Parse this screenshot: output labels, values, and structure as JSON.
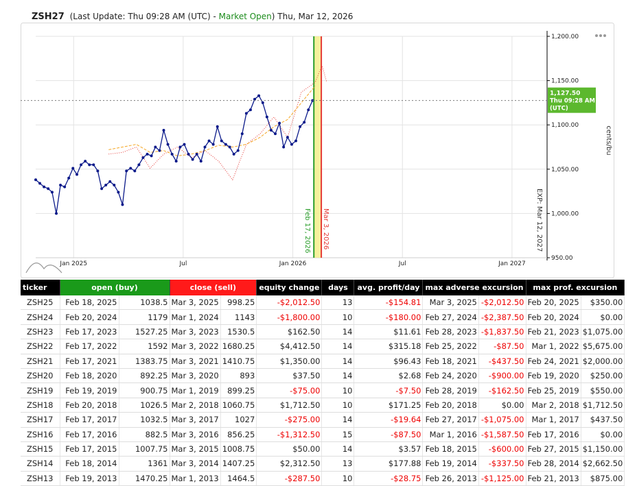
{
  "header": {
    "symbol": "ZSH27",
    "update_text": "(Last Update: Thu 09:28 AM (UTC) -",
    "status": "Market Open",
    "update_suffix": ")",
    "date": "Thu, Mar 12, 2026"
  },
  "chart_data": {
    "type": "line",
    "y_label": "cents/bu",
    "xlim": [
      2024.827,
      2027.16
    ],
    "xticks": [
      {
        "value": 2025.0,
        "label": "Jan 2025"
      },
      {
        "value": 2025.5,
        "label": "Jul"
      },
      {
        "value": 2026.0,
        "label": "Jan 2026"
      },
      {
        "value": 2026.5,
        "label": "Jul"
      },
      {
        "value": 2027.0,
        "label": "Jan 2027"
      }
    ],
    "ylim": [
      950,
      1200
    ],
    "yticks": [
      {
        "value": 950,
        "label": "950.00"
      },
      {
        "value": 1000,
        "label": "1,000.00"
      },
      {
        "value": 1050,
        "label": "1,050.00"
      },
      {
        "value": 1100,
        "label": "1,100.00"
      },
      {
        "value": 1150,
        "label": "1,150.00"
      },
      {
        "value": 1200,
        "label": "1,200.00"
      }
    ],
    "grid": true,
    "series": [
      {
        "color": "#0b1a8a",
        "markers": true,
        "x": [
          2024.827,
          2024.846,
          2024.865,
          2024.884,
          2024.902,
          2024.921,
          2024.94,
          2024.959,
          2024.978,
          2024.997,
          2025.015,
          2025.034,
          2025.053,
          2025.072,
          2025.091,
          2025.11,
          2025.128,
          2025.147,
          2025.166,
          2025.185,
          2025.204,
          2025.223,
          2025.241,
          2025.26,
          2025.279,
          2025.298,
          2025.317,
          2025.336,
          2025.355,
          2025.373,
          2025.392,
          2025.411,
          2025.43,
          2025.449,
          2025.468,
          2025.486,
          2025.505,
          2025.524,
          2025.543,
          2025.562,
          2025.581,
          2025.599,
          2025.618,
          2025.637,
          2025.656,
          2025.675,
          2025.694,
          2025.712,
          2025.731,
          2025.75,
          2025.769,
          2025.788,
          2025.807,
          2025.826,
          2025.845,
          2025.863,
          2025.882,
          2025.901,
          2025.92,
          2025.939,
          2025.958,
          2025.976,
          2025.995,
          2026.014,
          2026.033,
          2026.052,
          2026.071,
          2026.09
        ],
        "values": [
          1038,
          1034,
          1030,
          1028,
          1024,
          1000,
          1032,
          1030,
          1040,
          1051,
          1044,
          1055,
          1059,
          1055,
          1055,
          1048,
          1028,
          1032,
          1036,
          1032,
          1024,
          1010,
          1048,
          1051,
          1048,
          1055,
          1063,
          1067,
          1065,
          1075,
          1071,
          1094,
          1078,
          1067,
          1059,
          1075,
          1078,
          1067,
          1061,
          1067,
          1059,
          1075,
          1082,
          1078,
          1098,
          1082,
          1078,
          1075,
          1067,
          1071,
          1090,
          1113,
          1117,
          1129,
          1133,
          1125,
          1109,
          1094,
          1090,
          1102,
          1075,
          1086,
          1078,
          1082,
          1098,
          1103,
          1117,
          1127.5
        ]
      },
      {
        "color": "#f5a623",
        "dash": "4,2",
        "x": [
          2025.16,
          2025.223,
          2025.286,
          2025.349,
          2025.411,
          2025.474,
          2025.537,
          2025.6,
          2025.662,
          2025.725,
          2025.788,
          2025.851,
          2025.914,
          2025.976,
          2026.039,
          2026.102
        ],
        "values": [
          1072,
          1075,
          1078,
          1069,
          1071,
          1065,
          1067,
          1071,
          1077,
          1075,
          1078,
          1086,
          1098,
          1106,
          1125,
          1144
        ]
      },
      {
        "color": "#e53935",
        "dash": "1,2",
        "x": [
          2025.16,
          2025.223,
          2025.286,
          2025.349,
          2025.411,
          2025.474,
          2025.537,
          2025.6,
          2025.662,
          2025.725,
          2025.788,
          2025.851,
          2025.914,
          2025.976,
          2026.039,
          2026.102,
          2026.133,
          2026.155
        ],
        "values": [
          1067,
          1069,
          1075,
          1051,
          1067,
          1075,
          1063,
          1071,
          1059,
          1038,
          1078,
          1090,
          1109,
          1086,
          1137,
          1148,
          1167,
          1148
        ]
      }
    ],
    "vlines": [
      {
        "x": 2026.096,
        "label": "Feb 17, 2026",
        "color": "#2a9d2a"
      },
      {
        "x": 2026.13,
        "label": "Mar 3, 2026",
        "color": "#e53935"
      }
    ],
    "shade_color": "#f4ef8c",
    "exp_label": "EXP: Mar 12, 2027",
    "last_price": {
      "label": "1,127.50",
      "time": "Thu 09:28 AM",
      "zone": "(UTC)",
      "color": "#5cb82e"
    }
  },
  "table": {
    "columns": [
      "ticker",
      "open (buy)",
      "close (sell)",
      "equity change",
      "days",
      "avg. profit/day",
      "max adverse excursion",
      "max prof. excursion"
    ],
    "rows": [
      [
        "ZSH25",
        "Feb 18, 2025",
        "1038.5",
        "Mar 3, 2025",
        "998.25",
        "-$2,012.50",
        "13",
        "-$154.81",
        "Mar 3, 2025",
        "-$2,012.50",
        "Feb 20, 2025",
        "$350.00"
      ],
      [
        "ZSH24",
        "Feb 20, 2024",
        "1179",
        "Mar 1, 2024",
        "1143",
        "-$1,800.00",
        "10",
        "-$180.00",
        "Feb 27, 2024",
        "-$2,387.50",
        "Feb 20, 2024",
        "$0.00"
      ],
      [
        "ZSH23",
        "Feb 17, 2023",
        "1527.25",
        "Mar 3, 2023",
        "1530.5",
        "$162.50",
        "14",
        "$11.61",
        "Feb 28, 2023",
        "-$1,837.50",
        "Feb 21, 2023",
        "$1,075.00"
      ],
      [
        "ZSH22",
        "Feb 17, 2022",
        "1592",
        "Mar 3, 2022",
        "1680.25",
        "$4,412.50",
        "14",
        "$315.18",
        "Feb 25, 2022",
        "-$87.50",
        "Mar 1, 2022",
        "$5,675.00"
      ],
      [
        "ZSH21",
        "Feb 17, 2021",
        "1383.75",
        "Mar 3, 2021",
        "1410.75",
        "$1,350.00",
        "14",
        "$96.43",
        "Feb 18, 2021",
        "-$437.50",
        "Feb 24, 2021",
        "$2,000.00"
      ],
      [
        "ZSH20",
        "Feb 18, 2020",
        "892.25",
        "Mar 3, 2020",
        "893",
        "$37.50",
        "14",
        "$2.68",
        "Feb 24, 2020",
        "-$900.00",
        "Feb 19, 2020",
        "$250.00"
      ],
      [
        "ZSH19",
        "Feb 19, 2019",
        "900.75",
        "Mar 1, 2019",
        "899.25",
        "-$75.00",
        "10",
        "-$7.50",
        "Feb 28, 2019",
        "-$162.50",
        "Feb 25, 2019",
        "$550.00"
      ],
      [
        "ZSH18",
        "Feb 20, 2018",
        "1026.5",
        "Mar 2, 2018",
        "1060.75",
        "$1,712.50",
        "10",
        "$171.25",
        "Feb 20, 2018",
        "$0.00",
        "Mar 2, 2018",
        "$1,712.50"
      ],
      [
        "ZSH17",
        "Feb 17, 2017",
        "1032.5",
        "Mar 3, 2017",
        "1027",
        "-$275.00",
        "14",
        "-$19.64",
        "Feb 27, 2017",
        "-$1,075.00",
        "Mar 1, 2017",
        "$437.50"
      ],
      [
        "ZSH16",
        "Feb 17, 2016",
        "882.5",
        "Mar 3, 2016",
        "856.25",
        "-$1,312.50",
        "15",
        "-$87.50",
        "Mar 1, 2016",
        "-$1,587.50",
        "Feb 17, 2016",
        "$0.00"
      ],
      [
        "ZSH15",
        "Feb 17, 2015",
        "1007.75",
        "Mar 3, 2015",
        "1008.75",
        "$50.00",
        "14",
        "$3.57",
        "Feb 18, 2015",
        "-$600.00",
        "Feb 27, 2015",
        "$1,150.00"
      ],
      [
        "ZSH14",
        "Feb 18, 2014",
        "1361",
        "Mar 3, 2014",
        "1407.25",
        "$2,312.50",
        "13",
        "$177.88",
        "Feb 19, 2014",
        "-$337.50",
        "Feb 28, 2014",
        "$2,662.50"
      ],
      [
        "ZSH13",
        "Feb 19, 2013",
        "1470.25",
        "Mar 1, 2013",
        "1464.5",
        "-$287.50",
        "10",
        "-$28.75",
        "Feb 26, 2013",
        "-$1,125.00",
        "Feb 21, 2013",
        "$875.00"
      ]
    ]
  }
}
